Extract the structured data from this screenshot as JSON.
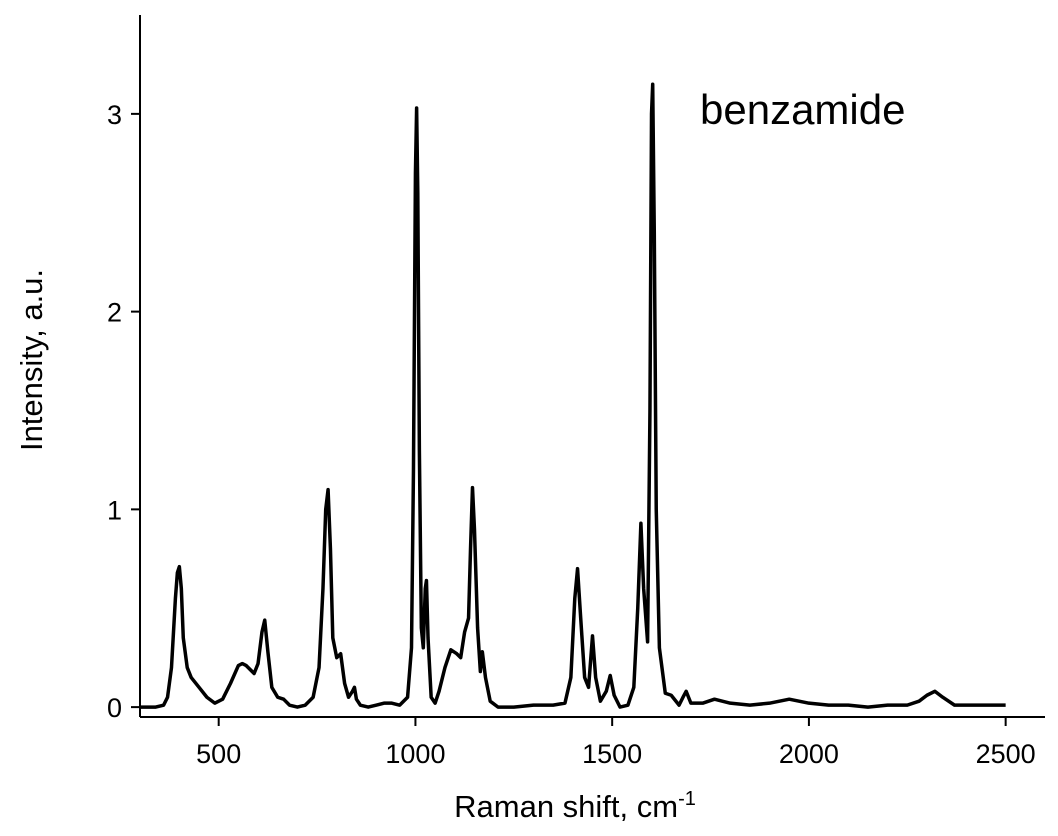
{
  "chart_data": {
    "type": "line",
    "annotation": "benzamide",
    "xlabel": "Raman shift, cm",
    "xlabel_superscript": "-1",
    "ylabel": "Intensity, a.u.",
    "xlim": [
      300,
      2600
    ],
    "ylim": [
      -0.05,
      3.5
    ],
    "xticks": [
      500,
      1000,
      1500,
      2000,
      2500
    ],
    "yticks": [
      0,
      1,
      2,
      3
    ],
    "series": [
      {
        "color": "#000000",
        "x": [
          300,
          320,
          340,
          360,
          370,
          380,
          390,
          395,
          400,
          405,
          410,
          420,
          430,
          450,
          470,
          490,
          510,
          530,
          550,
          560,
          570,
          590,
          600,
          610,
          617,
          625,
          635,
          650,
          665,
          680,
          700,
          720,
          740,
          755,
          765,
          772,
          778,
          784,
          790,
          800,
          810,
          820,
          830,
          840,
          845,
          850,
          860,
          880,
          900,
          920,
          940,
          960,
          980,
          990,
          995,
          1000,
          1003,
          1006,
          1010,
          1015,
          1020,
          1025,
          1028,
          1032,
          1040,
          1050,
          1060,
          1075,
          1090,
          1105,
          1115,
          1125,
          1135,
          1140,
          1145,
          1150,
          1158,
          1165,
          1170,
          1178,
          1190,
          1210,
          1250,
          1300,
          1350,
          1380,
          1395,
          1405,
          1412,
          1420,
          1430,
          1440,
          1450,
          1458,
          1470,
          1485,
          1495,
          1505,
          1520,
          1540,
          1555,
          1565,
          1573,
          1580,
          1590,
          1596,
          1600,
          1603,
          1607,
          1612,
          1620,
          1635,
          1650,
          1670,
          1680,
          1688,
          1700,
          1730,
          1760,
          1800,
          1850,
          1900,
          1950,
          2000,
          2050,
          2100,
          2150,
          2200,
          2250,
          2280,
          2300,
          2320,
          2340,
          2370,
          2400,
          2450,
          2500
        ],
        "values": [
          0,
          0,
          0,
          0.01,
          0.05,
          0.2,
          0.55,
          0.68,
          0.71,
          0.6,
          0.35,
          0.2,
          0.15,
          0.1,
          0.05,
          0.02,
          0.04,
          0.12,
          0.21,
          0.22,
          0.21,
          0.17,
          0.22,
          0.38,
          0.44,
          0.28,
          0.1,
          0.05,
          0.04,
          0.01,
          0,
          0.01,
          0.05,
          0.2,
          0.6,
          1.0,
          1.1,
          0.8,
          0.35,
          0.25,
          0.27,
          0.12,
          0.05,
          0.08,
          0.1,
          0.04,
          0.01,
          0,
          0.01,
          0.02,
          0.02,
          0.01,
          0.05,
          0.3,
          1.2,
          2.7,
          3.03,
          2.6,
          1.3,
          0.4,
          0.3,
          0.6,
          0.64,
          0.35,
          0.05,
          0.02,
          0.08,
          0.2,
          0.29,
          0.27,
          0.25,
          0.38,
          0.45,
          0.8,
          1.11,
          0.9,
          0.4,
          0.18,
          0.28,
          0.15,
          0.03,
          0,
          0,
          0.01,
          0.01,
          0.02,
          0.15,
          0.55,
          0.7,
          0.45,
          0.15,
          0.1,
          0.36,
          0.15,
          0.03,
          0.08,
          0.16,
          0.06,
          0,
          0.01,
          0.1,
          0.5,
          0.93,
          0.6,
          0.33,
          1.5,
          3.0,
          3.15,
          2.4,
          1.0,
          0.3,
          0.07,
          0.06,
          0.01,
          0.05,
          0.08,
          0.02,
          0.02,
          0.04,
          0.02,
          0.01,
          0.02,
          0.04,
          0.02,
          0.01,
          0.01,
          0,
          0.01,
          0.01,
          0.03,
          0.06,
          0.08,
          0.05,
          0.01,
          0.01,
          0.01,
          0.01
        ]
      }
    ]
  }
}
